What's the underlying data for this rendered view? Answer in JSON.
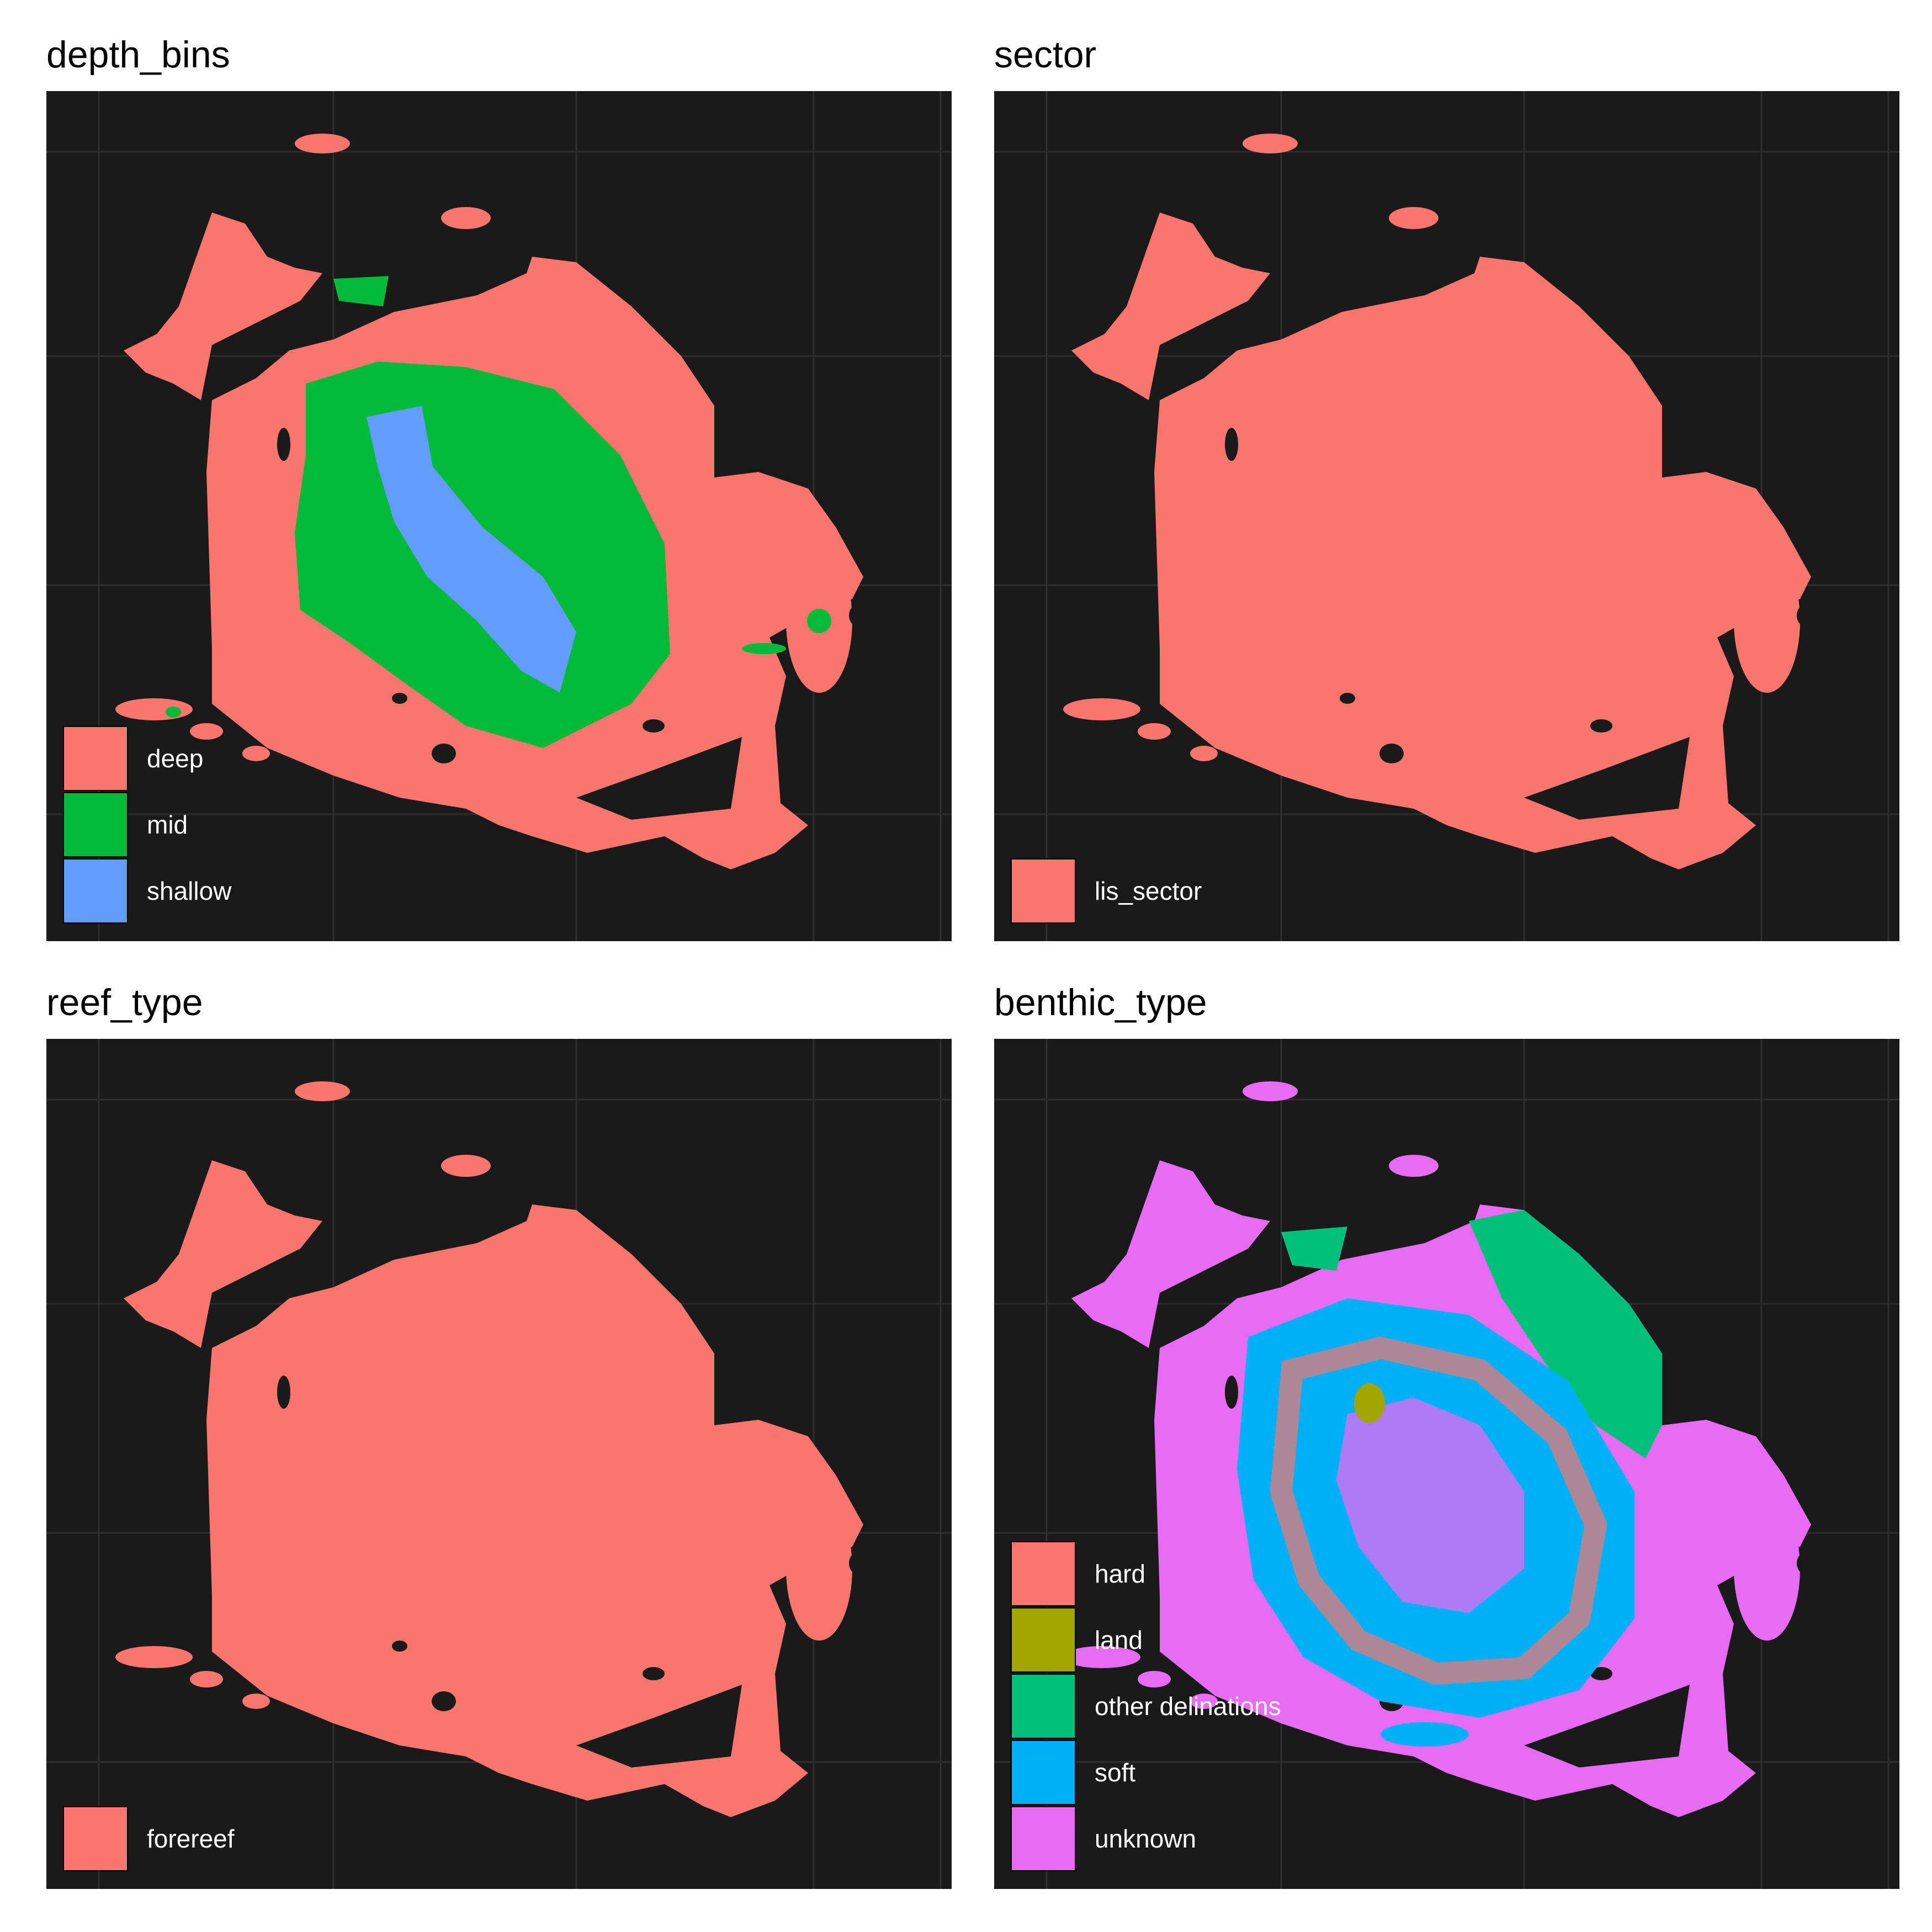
{
  "colors": {
    "background": "#1a1a1a",
    "grid": "#2e2e2e",
    "deep": "#f8766d",
    "mid": "#00ba38",
    "shallow": "#619cff",
    "lis_sector": "#f8766d",
    "forereef": "#f8766d",
    "hard": "#f8766d",
    "land": "#a3a500",
    "other_delinations": "#00bf7d",
    "soft": "#00b0f6",
    "unknown": "#e76bf3"
  },
  "panels": [
    {
      "title": "depth_bins",
      "legend": [
        {
          "label": "deep",
          "color": "#f8766d"
        },
        {
          "label": "mid",
          "color": "#00ba38"
        },
        {
          "label": "shallow",
          "color": "#619cff"
        }
      ]
    },
    {
      "title": "sector",
      "legend": [
        {
          "label": "lis_sector",
          "color": "#f8766d"
        }
      ]
    },
    {
      "title": "reef_type",
      "legend": [
        {
          "label": "forereef",
          "color": "#f8766d"
        }
      ]
    },
    {
      "title": "benthic_type",
      "legend": [
        {
          "label": "hard",
          "color": "#f8766d"
        },
        {
          "label": "land",
          "color": "#a3a500"
        },
        {
          "label": "other delinations",
          "color": "#00bf7d"
        },
        {
          "label": "soft",
          "color": "#00b0f6"
        },
        {
          "label": "unknown",
          "color": "#e76bf3"
        }
      ]
    }
  ]
}
